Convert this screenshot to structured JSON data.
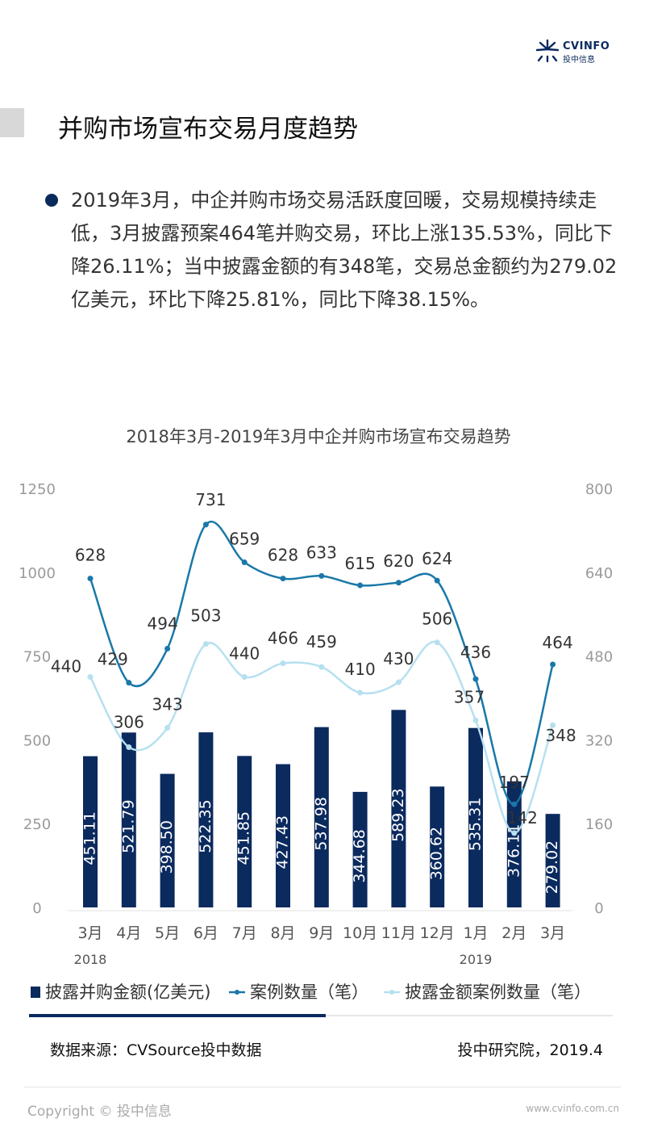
{
  "header": {
    "logo_text": "CVINFO",
    "logo_sub": "投中信息",
    "title": "并购市场宣布交易月度趋势"
  },
  "summary": {
    "text": "2019年3月，中企并购市场交易活跃度回暖，交易规模持续走低，3月披露预案464笔并购交易，环比上涨135.53%，同比下降26.11%；当中披露金额的有348笔，交易总金额约为279.02亿美元，环比下降25.81%，同比下降38.15%。"
  },
  "chart_data": {
    "type": "bar",
    "title": "2018年3月-2019年3月中企并购市场宣布交易趋势",
    "categories": [
      "3月",
      "4月",
      "5月",
      "6月",
      "7月",
      "8月",
      "9月",
      "10月",
      "11月",
      "12月",
      "1月",
      "2月",
      "3月"
    ],
    "year_labels": [
      {
        "index": 0,
        "label": "2018"
      },
      {
        "index": 10,
        "label": "2019"
      }
    ],
    "ylim_left": [
      0,
      1250
    ],
    "yticks_left": [
      0,
      250,
      500,
      750,
      1000,
      1250
    ],
    "ylim_right": [
      0,
      800
    ],
    "yticks_right": [
      0,
      160,
      320,
      480,
      640,
      800
    ],
    "series": [
      {
        "name": "披露并购金额(亿美元)",
        "type": "bar",
        "axis": "left",
        "color": "#0b2a5e",
        "values": [
          451.11,
          521.79,
          398.5,
          522.35,
          451.85,
          427.43,
          537.98,
          344.68,
          589.23,
          360.62,
          535.31,
          376.11,
          279.02
        ],
        "labels": [
          "451.11",
          "521.79",
          "398.50",
          "522.35",
          "451.85",
          "427.43",
          "537.98",
          "344.68",
          "589.23",
          "360.62",
          "535.31",
          "376.11",
          "279.02"
        ]
      },
      {
        "name": "案例数量（笔）",
        "type": "line",
        "axis": "right",
        "color": "#1a78a8",
        "values": [
          628,
          429,
          494,
          731,
          659,
          628,
          633,
          615,
          620,
          624,
          436,
          197,
          464
        ]
      },
      {
        "name": "披露金额案例数量（笔）",
        "type": "line",
        "axis": "right",
        "color": "#b6e0f0",
        "values": [
          440,
          306,
          343,
          503,
          440,
          466,
          459,
          410,
          430,
          506,
          357,
          142,
          348
        ]
      }
    ],
    "legend_position": "bottom",
    "grid": false
  },
  "footer": {
    "source": "数据来源：CVSource投中数据",
    "institute": "投中研究院，2019.4",
    "copyright": "Copyright © 投中信息",
    "site": "www.cvinfo.com.cn"
  }
}
